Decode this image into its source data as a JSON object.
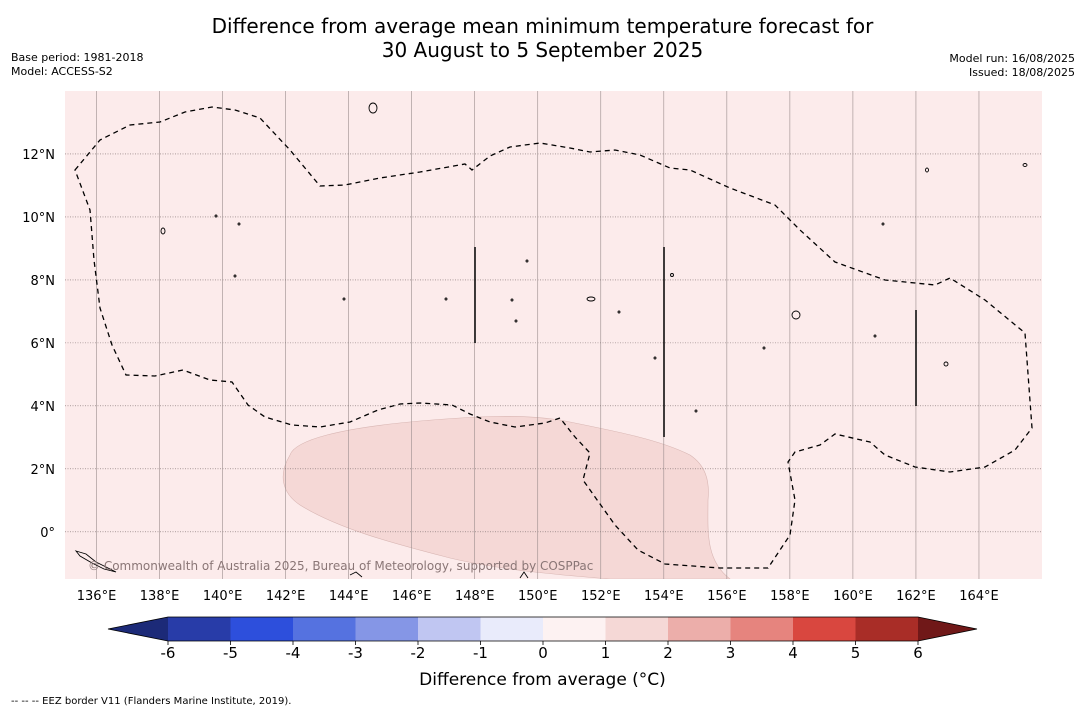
{
  "title_line1": "Difference from average mean minimum temperature forecast for",
  "title_line2": "30 August to 5 September 2025",
  "base_period": "Base period: 1981-2018",
  "model": "Model: ACCESS-S2",
  "model_run": "Model run: 16/08/2025",
  "issued": "Issued: 18/08/2025",
  "copyright": "© Commonwealth of Australia 2025, Bureau of Meteorology, supported by COSPPac",
  "eez_note": "--  --  -- EEZ border V11 (Flanders Marine Institute, 2019).",
  "map": {
    "lon_range": [
      135,
      166
    ],
    "lat_range": [
      -1.5,
      14
    ],
    "lon_ticks": [
      "136°E",
      "138°E",
      "140°E",
      "142°E",
      "144°E",
      "146°E",
      "148°E",
      "150°E",
      "152°E",
      "154°E",
      "156°E",
      "158°E",
      "160°E",
      "162°E",
      "164°E"
    ],
    "lat_ticks": [
      "12°N",
      "10°N",
      "8°N",
      "6°N",
      "4°N",
      "2°N",
      "0°"
    ],
    "background_category": "0 to 1",
    "background_color": "#fcebeb",
    "warm_region_category": "1 to 2",
    "warm_region_color": "#f5d8d6"
  },
  "colorbar": {
    "label": "Difference from average (°C)",
    "ticks": [
      "-6",
      "-5",
      "-4",
      "-3",
      "-2",
      "-1",
      "0",
      "1",
      "2",
      "3",
      "4",
      "5",
      "6"
    ],
    "colors": [
      "#283ca8",
      "#2d4fdc",
      "#5572e0",
      "#8596e6",
      "#c0c6f2",
      "#e9ebfb",
      "#fdf2f2",
      "#f5d8d6",
      "#ecaeaa",
      "#e6847e",
      "#d9473f",
      "#a92d27"
    ],
    "low_extend_color": "#1c2a78",
    "high_extend_color": "#701818"
  }
}
